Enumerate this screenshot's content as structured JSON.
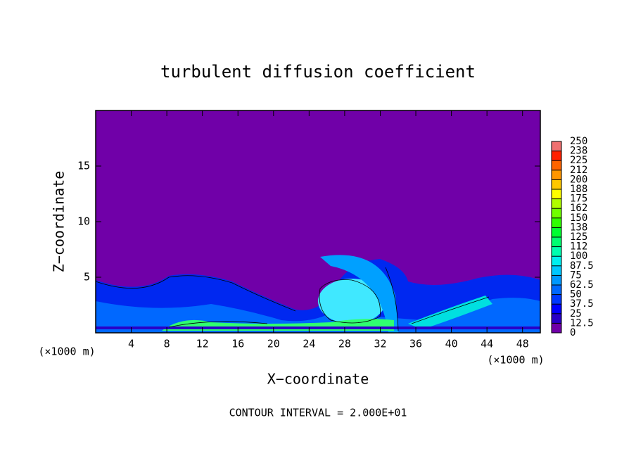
{
  "chart_data": {
    "type": "contour",
    "title": "turbulent diffusion coefficient",
    "x_label": "X−coordinate",
    "y_label": "Z−coordinate",
    "x_unit_label": "(×1000 m)",
    "x_unit_label_right": "(×1000 m)",
    "footer": "CONTOUR INTERVAL = 2.000E+01",
    "xlim": [
      0,
      50
    ],
    "ylim": [
      0,
      20
    ],
    "xticks": [
      4,
      8,
      12,
      16,
      20,
      24,
      28,
      32,
      36,
      40,
      44,
      48
    ],
    "yticks": [
      5,
      10,
      15
    ],
    "colorbar": {
      "lim": [
        0,
        250
      ],
      "ticks": [
        0,
        12.5,
        25,
        37.5,
        50,
        62.5,
        75,
        87.5,
        100,
        {
          "value": 112.5,
          "label": "112"
        },
        125,
        {
          "value": 137.5,
          "label": "138"
        },
        150,
        {
          "value": 162.5,
          "label": "162"
        },
        175,
        {
          "value": 187.5,
          "label": "188"
        },
        200,
        {
          "value": 212.5,
          "label": "212"
        },
        225,
        {
          "value": 237.5,
          "label": "238"
        },
        250
      ],
      "colors": [
        "#7000a8",
        "#2800c8",
        "#0000ff",
        "#0038ff",
        "#0068ff",
        "#0098ff",
        "#00c8ff",
        "#00f0f0",
        "#00ffb0",
        "#00ff70",
        "#00ff30",
        "#30ff00",
        "#70ff00",
        "#b0ff00",
        "#ffff00",
        "#ffc800",
        "#ff9600",
        "#ff6400",
        "#ff2000",
        "#f07070"
      ]
    }
  }
}
